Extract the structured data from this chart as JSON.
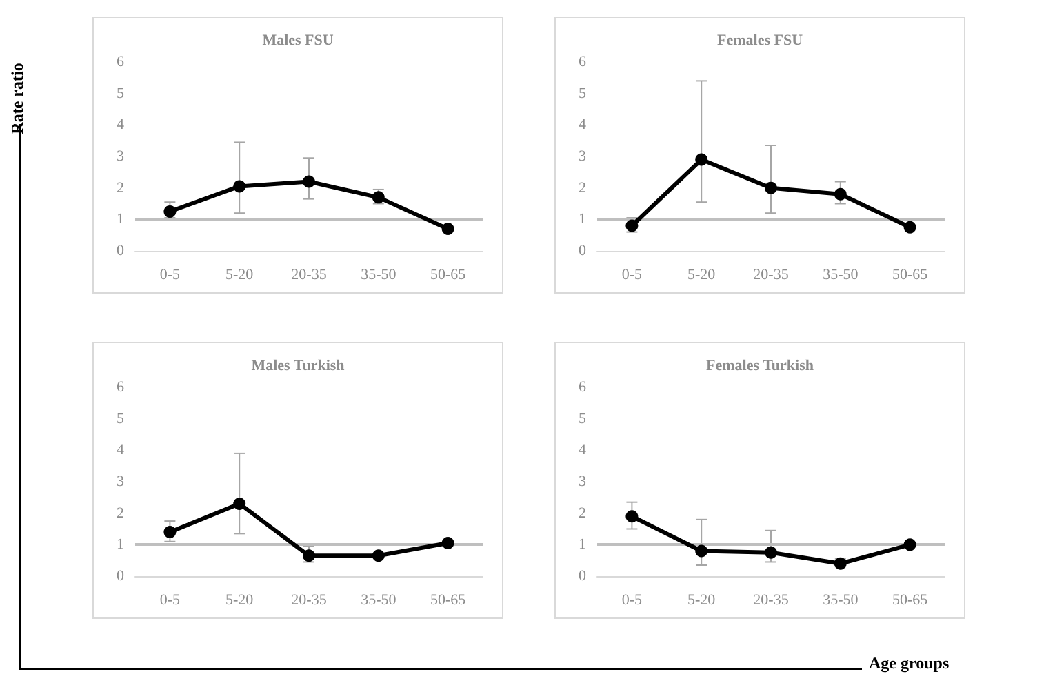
{
  "chart_data": [
    {
      "type": "line",
      "title": "Males FSU",
      "ylabel": "Rate ratio",
      "categories": [
        "0-5",
        "5-20",
        "20-35",
        "35-50",
        "50-65"
      ],
      "series": [
        {
          "color": "#000000",
          "values": [
            1.25,
            2.05,
            2.2,
            1.7,
            0.7
          ],
          "errors": [
            [
              1.05,
              1.55
            ],
            [
              1.2,
              3.45
            ],
            [
              1.65,
              2.95
            ],
            [
              1.5,
              1.95
            ],
            [
              0.65,
              0.75
            ]
          ]
        }
      ],
      "ylim": [
        0,
        6
      ],
      "yticks": [
        0,
        1,
        2,
        3,
        4,
        5,
        6
      ],
      "grid": false,
      "marker": "circle",
      "ref_lines": [
        {
          "axis": "y",
          "value": 1,
          "color": "#bfbfbf"
        }
      ]
    },
    {
      "type": "line",
      "title": "Females FSU",
      "categories": [
        "0-5",
        "5-20",
        "20-35",
        "35-50",
        "50-65"
      ],
      "series": [
        {
          "color": "#000000",
          "values": [
            0.8,
            2.9,
            2.0,
            1.8,
            0.75
          ],
          "errors": [
            [
              0.6,
              1.05
            ],
            [
              1.55,
              5.4
            ],
            [
              1.2,
              3.35
            ],
            [
              1.5,
              2.2
            ],
            [
              0.7,
              0.8
            ]
          ]
        }
      ],
      "ylim": [
        0,
        6
      ],
      "yticks": [
        0,
        1,
        2,
        3,
        4,
        5,
        6
      ],
      "grid": false,
      "marker": "circle",
      "ref_lines": [
        {
          "axis": "y",
          "value": 1,
          "color": "#bfbfbf"
        }
      ]
    },
    {
      "type": "line",
      "title": "Males Turkish",
      "categories": [
        "0-5",
        "5-20",
        "20-35",
        "35-50",
        "50-65"
      ],
      "series": [
        {
          "color": "#000000",
          "values": [
            1.4,
            2.3,
            0.65,
            0.65,
            1.05
          ],
          "errors": [
            [
              1.1,
              1.75
            ],
            [
              1.35,
              3.9
            ],
            [
              0.45,
              0.95
            ],
            [
              0.6,
              0.7
            ],
            [
              1.0,
              1.1
            ]
          ]
        }
      ],
      "ylim": [
        0,
        6
      ],
      "yticks": [
        0,
        1,
        2,
        3,
        4,
        5,
        6
      ],
      "grid": false,
      "marker": "circle",
      "ref_lines": [
        {
          "axis": "y",
          "value": 1,
          "color": "#bfbfbf"
        }
      ]
    },
    {
      "type": "line",
      "title": "Females Turkish",
      "xlabel": "Age groups",
      "categories": [
        "0-5",
        "5-20",
        "20-35",
        "35-50",
        "50-65"
      ],
      "series": [
        {
          "color": "#000000",
          "values": [
            1.9,
            0.8,
            0.75,
            0.4,
            1.0
          ],
          "errors": [
            [
              1.5,
              2.35
            ],
            [
              0.35,
              1.8
            ],
            [
              0.45,
              1.45
            ],
            [
              0.3,
              0.55
            ],
            [
              0.95,
              1.05
            ]
          ]
        }
      ],
      "ylim": [
        0,
        6
      ],
      "yticks": [
        0,
        1,
        2,
        3,
        4,
        5,
        6
      ],
      "grid": false,
      "marker": "circle",
      "ref_lines": [
        {
          "axis": "y",
          "value": 1,
          "color": "#bfbfbf"
        }
      ]
    }
  ]
}
